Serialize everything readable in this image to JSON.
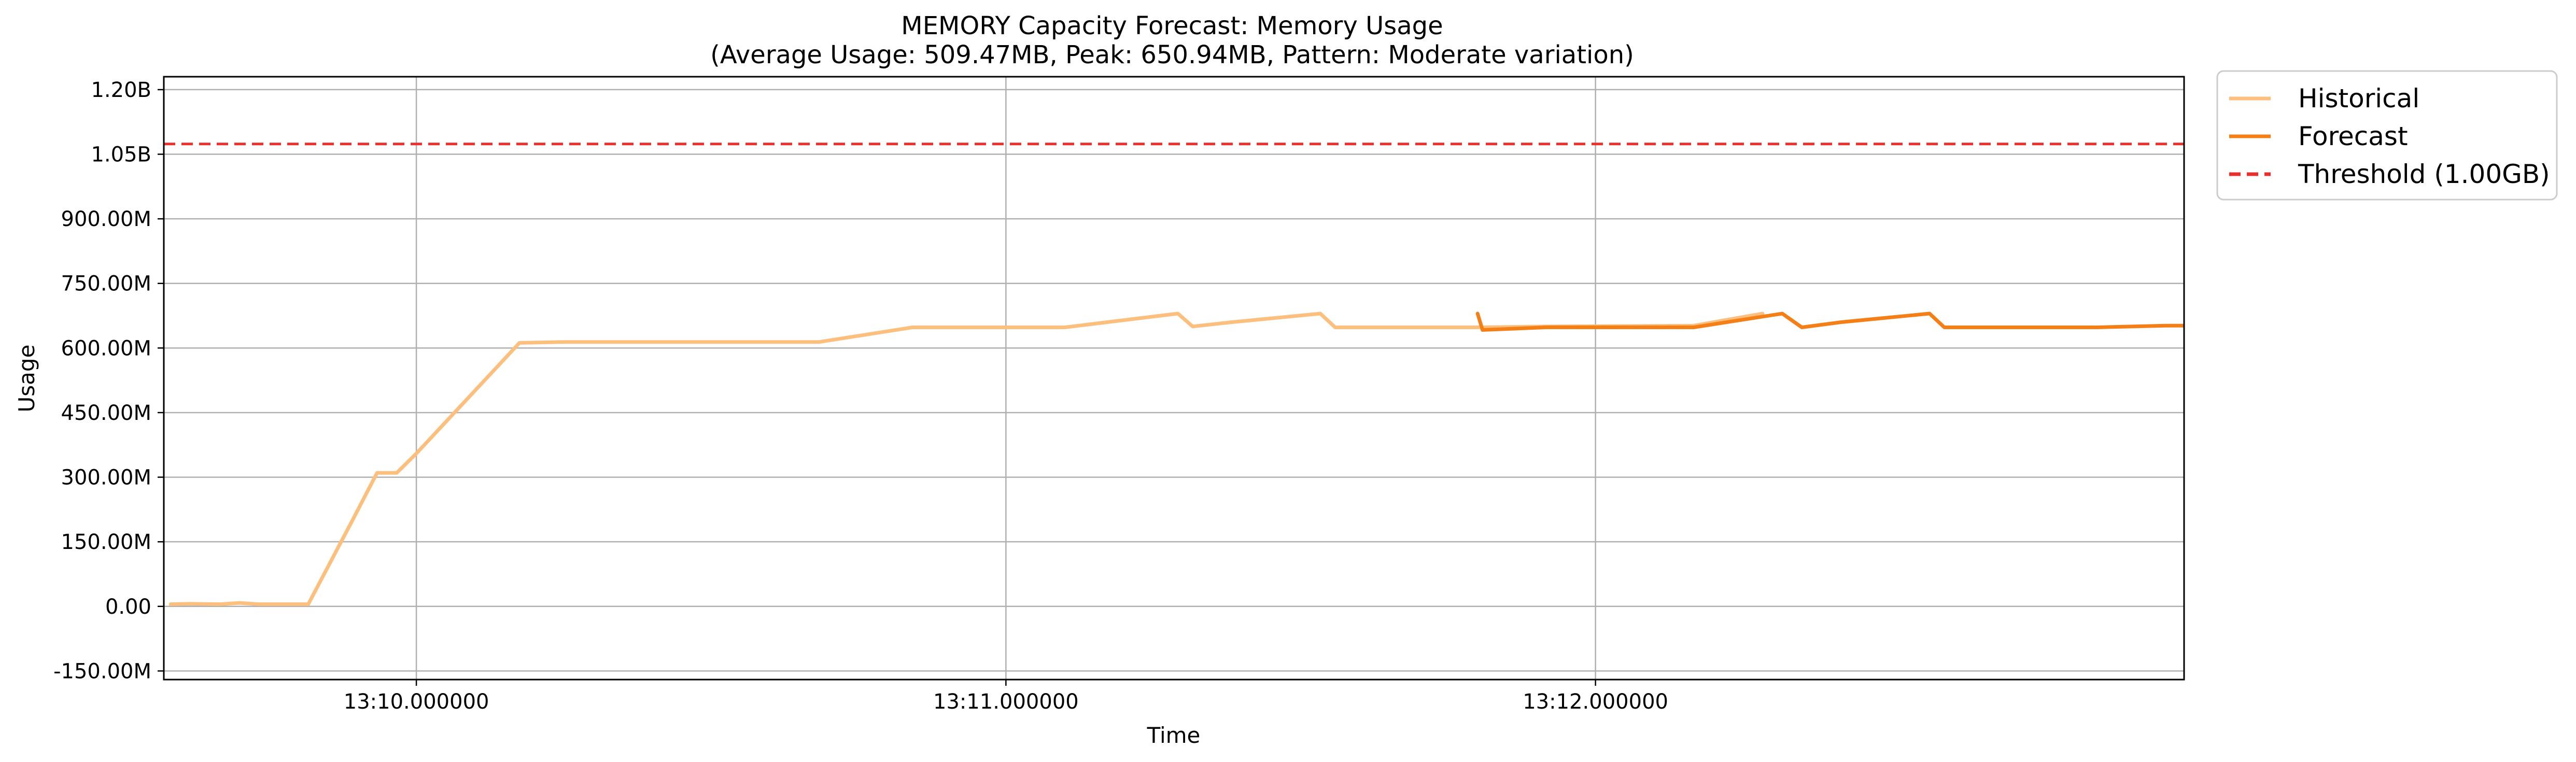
{
  "chart_data": {
    "type": "line",
    "title": "MEMORY Capacity Forecast: Memory Usage",
    "subtitle": "(Average Usage: 509.47MB, Peak: 650.94MB, Pattern: Moderate variation)",
    "xlabel": "Time",
    "ylabel": "Usage",
    "x_range_seconds": [
      "13:09:34.3",
      "13:12:59.9"
    ],
    "xticks": [
      {
        "value": "13:10:00",
        "label": "13:10.000000"
      },
      {
        "value": "13:11:00",
        "label": "13:11.000000"
      },
      {
        "value": "13:12:00",
        "label": "13:12.000000"
      }
    ],
    "ylim": [
      -170000000,
      1230000000
    ],
    "yticks": [
      {
        "value": -150000000,
        "label": "-150.00M"
      },
      {
        "value": 0,
        "label": "0.00"
      },
      {
        "value": 150000000,
        "label": "150.00M"
      },
      {
        "value": 300000000,
        "label": "300.00M"
      },
      {
        "value": 450000000,
        "label": "450.00M"
      },
      {
        "value": 600000000,
        "label": "600.00M"
      },
      {
        "value": 750000000,
        "label": "750.00M"
      },
      {
        "value": 900000000,
        "label": "900.00M"
      },
      {
        "value": 1050000000,
        "label": "1.05B"
      },
      {
        "value": 1200000000,
        "label": "1.20B"
      }
    ],
    "grid": true,
    "legend_position": "outside top-right",
    "series": [
      {
        "name": "Historical",
        "color": "#fdbf7e",
        "style": "solid",
        "x": [
          "13:09:35.0",
          "13:09:37.0",
          "13:09:40.0",
          "13:09:42.0",
          "13:09:44.0",
          "13:09:46.0",
          "13:09:49.0",
          "13:09:53.5",
          "13:09:56.0",
          "13:09:58.0",
          "13:10:00.0",
          "13:10:10.5",
          "13:10:15.0",
          "13:10:30.0",
          "13:10:41.0",
          "13:10:50.5",
          "13:11:06.0",
          "13:11:17.5",
          "13:11:19.0",
          "13:11:23.0",
          "13:11:32.0",
          "13:11:33.5",
          "13:11:48.0",
          "13:11:55.0",
          "13:12:10.0",
          "13:12:17.0"
        ],
        "y": [
          5000000,
          6000000,
          5000000,
          8000000,
          5000000,
          5000000,
          5000000,
          200000000,
          310000000,
          310000000,
          355000000,
          612000000,
          614000000,
          614000000,
          614000000,
          648000000,
          648000000,
          680000000,
          650000000,
          660000000,
          680000000,
          648000000,
          648000000,
          650000000,
          652000000,
          680000000
        ]
      },
      {
        "name": "Forecast",
        "color": "#f57f17",
        "style": "solid",
        "x": [
          "13:11:48.0",
          "13:11:48.5",
          "13:11:55.0",
          "13:12:10.0",
          "13:12:19.0",
          "13:12:21.0",
          "13:12:25.0",
          "13:12:34.0",
          "13:12:35.5",
          "13:12:51.0",
          "13:12:58.0",
          "13:13:01.0",
          "13:13:13.0",
          "13:13:20.0",
          "13:13:21.0"
        ],
        "y": [
          680000000,
          642000000,
          648000000,
          648000000,
          680000000,
          648000000,
          660000000,
          680000000,
          648000000,
          648000000,
          652000000,
          652000000,
          652000000,
          680000000,
          676000000
        ]
      },
      {
        "name": "Threshold (1.00GB)",
        "color": "#e8312c",
        "style": "dashed",
        "constant": 1073741824
      }
    ]
  }
}
